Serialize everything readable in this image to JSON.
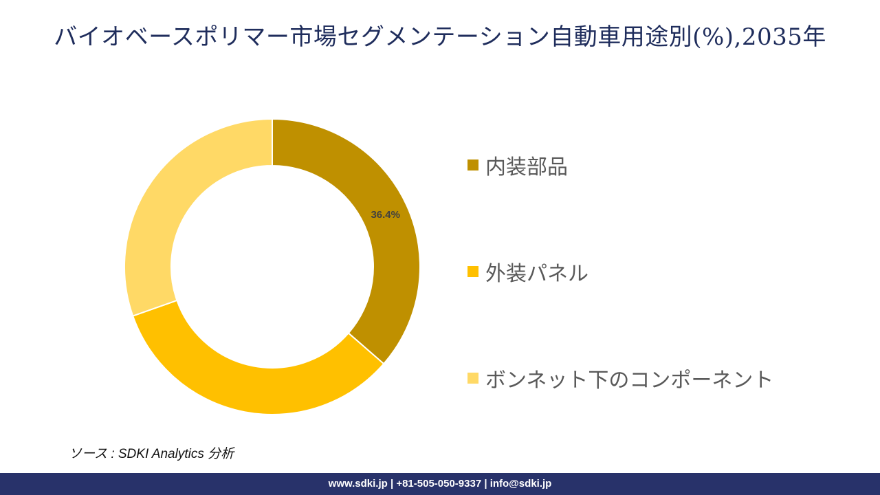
{
  "title": "バイオベースポリマー市場セグメンテーション自動車用途別(%),2035年",
  "chart_data": {
    "type": "pie",
    "donut": true,
    "categories": [
      "内装部品",
      "外装パネル",
      "ボンネット下のコンポーネント"
    ],
    "values": [
      36.4,
      33.2,
      30.4
    ],
    "data_labels": [
      "36.4%",
      "",
      ""
    ],
    "colors": [
      "#bf9000",
      "#ffc000",
      "#ffd966"
    ],
    "legend_position": "right"
  },
  "source": "ソース : SDKI Analytics 分析",
  "footer": {
    "contact": "www.sdki.jp | +81-505-050-9337 | info@sdki.jp"
  }
}
